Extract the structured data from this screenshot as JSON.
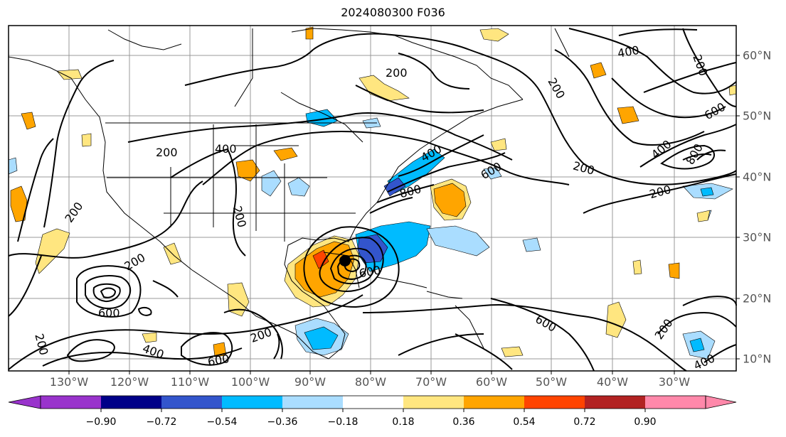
{
  "title": "2024080300 F036",
  "lon_labels": [
    "130°W",
    "120°W",
    "110°W",
    "100°W",
    "90°W",
    "80°W",
    "70°W",
    "60°W",
    "50°W",
    "40°W",
    "30°W"
  ],
  "lat_labels": [
    "60°N",
    "50°N",
    "40°N",
    "30°N",
    "20°N",
    "10°N"
  ],
  "contour_labels": [
    "200",
    "200",
    "200",
    "200",
    "200",
    "200",
    "200",
    "200",
    "200",
    "200",
    "200",
    "200",
    "400",
    "400",
    "400",
    "400",
    "400",
    "400",
    "600",
    "600",
    "600",
    "600",
    "600",
    "600",
    "800",
    "800"
  ],
  "colorbar": {
    "tick_labels": [
      "−0.90",
      "−0.72",
      "−0.54",
      "−0.36",
      "−0.18",
      "0.18",
      "0.36",
      "0.54",
      "0.72",
      "0.90"
    ],
    "colors": [
      "#9933cc",
      "#000088",
      "#3355cc",
      "#00bbff",
      "#aaddff",
      "#ffffff",
      "#ffe680",
      "#ffa500",
      "#ff4400",
      "#b22222",
      "#ff88aa"
    ]
  }
}
